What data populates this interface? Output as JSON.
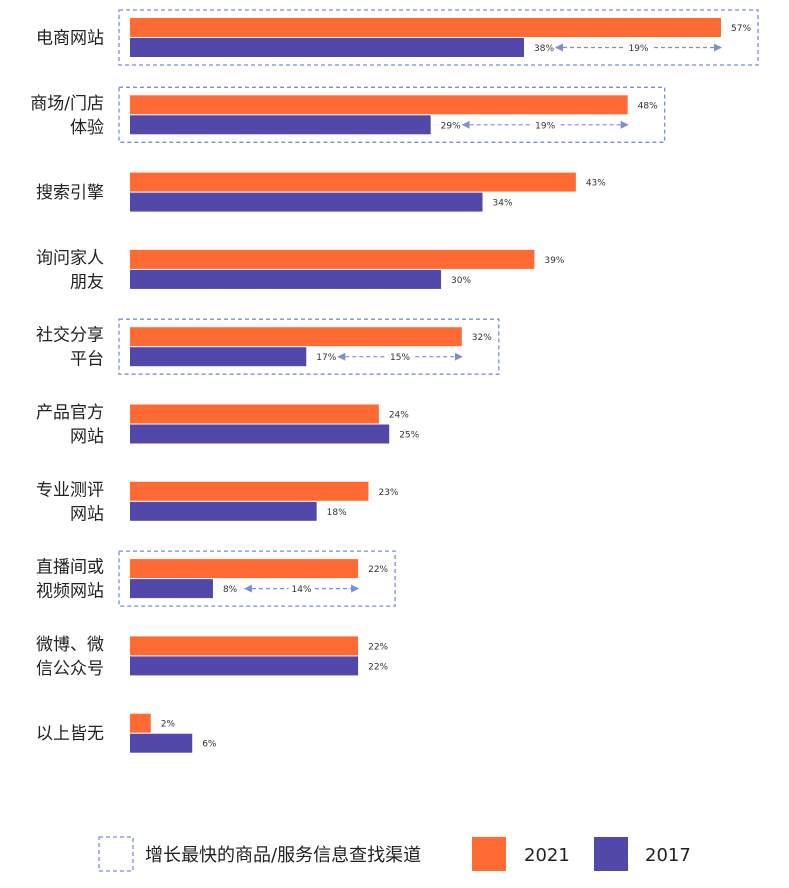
{
  "chart_data": {
    "type": "bar",
    "orientation": "horizontal",
    "xlim": [
      0,
      60
    ],
    "categories": [
      "电商网站",
      "商场/门店\n体验",
      "搜索引擎",
      "询问家人\n朋友",
      "社交分享\n平台",
      "产品官方\n网站",
      "专业测评\n网站",
      "直播间或\n视频网站",
      "微博、微\n信公众号",
      "以上皆无"
    ],
    "series": [
      {
        "name": "2021",
        "color": "#ff6a33",
        "values": [
          57,
          48,
          43,
          39,
          32,
          24,
          23,
          22,
          22,
          2
        ]
      },
      {
        "name": "2017",
        "color": "#5148aa",
        "values": [
          38,
          29,
          34,
          30,
          17,
          25,
          18,
          8,
          22,
          6
        ]
      }
    ],
    "value_labels": {
      "2021": [
        "57%",
        "48%",
        "43%",
        "39%",
        "32%",
        "24%",
        "23%",
        "22%",
        "22%",
        "2%"
      ],
      "2017": [
        "38%",
        "29%",
        "34%",
        "30%",
        "17%",
        "25%",
        "18%",
        "8%",
        "22%",
        "6%"
      ]
    },
    "highlights": [
      {
        "category_index": 0,
        "growth": 19,
        "label": "19%"
      },
      {
        "category_index": 1,
        "growth": 19,
        "label": "19%"
      },
      {
        "category_index": 4,
        "growth": 15,
        "label": "15%"
      },
      {
        "category_index": 7,
        "growth": 14,
        "label": "14%"
      }
    ],
    "legend": {
      "position": "bottom",
      "items": [
        {
          "label": "增长最快的商品/服务信息查找渠道",
          "style": "dashed-box"
        },
        {
          "label": "2021",
          "color": "#ff6a33"
        },
        {
          "label": "2017",
          "color": "#5148aa"
        }
      ]
    },
    "title": "",
    "xlabel": "",
    "ylabel": "",
    "grid": false
  }
}
